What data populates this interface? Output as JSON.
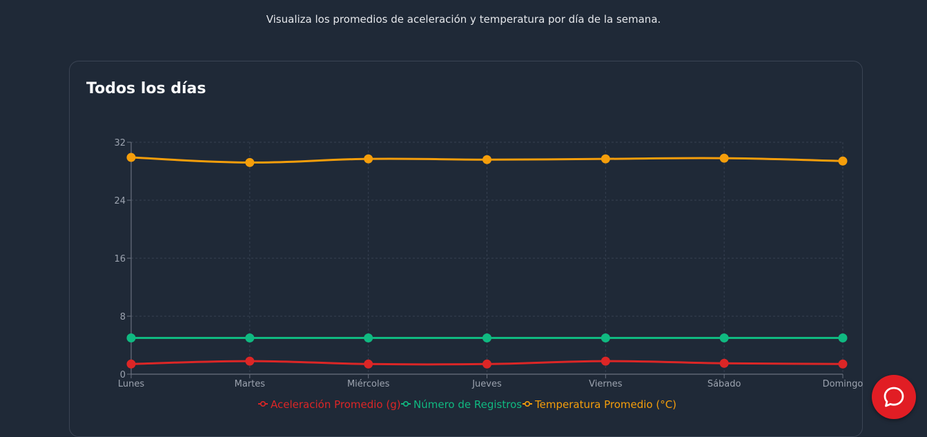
{
  "header": {
    "subtitle": "Visualiza los promedios de aceleración y temperatura por día de la semana."
  },
  "card": {
    "title": "Todos los días"
  },
  "chat": {
    "icon": "chat-bubble-icon"
  },
  "colors": {
    "background": "#1f2937",
    "grid": "#374151",
    "axis": "#6b7280",
    "tick_text": "#9ca3af",
    "chat_button": "#e11d24"
  },
  "chart_data": {
    "type": "line",
    "categories": [
      "Lunes",
      "Martes",
      "Miércoles",
      "Jueves",
      "Viernes",
      "Sábado",
      "Domingo"
    ],
    "ylim": [
      0,
      32
    ],
    "yticks": [
      0,
      8,
      16,
      24,
      32
    ],
    "grid": true,
    "legend_position": "bottom",
    "series": [
      {
        "name": "Aceleración Promedio (g)",
        "color": "#dc2626",
        "values": [
          1.4,
          1.8,
          1.4,
          1.4,
          1.8,
          1.5,
          1.4
        ]
      },
      {
        "name": "Número de Registros",
        "color": "#10b981",
        "values": [
          5,
          5,
          5,
          5,
          5,
          5,
          5
        ]
      },
      {
        "name": "Temperatura Promedio (°C)",
        "color": "#f59e0b",
        "values": [
          29.9,
          29.2,
          29.7,
          29.6,
          29.7,
          29.8,
          29.4
        ]
      }
    ]
  }
}
